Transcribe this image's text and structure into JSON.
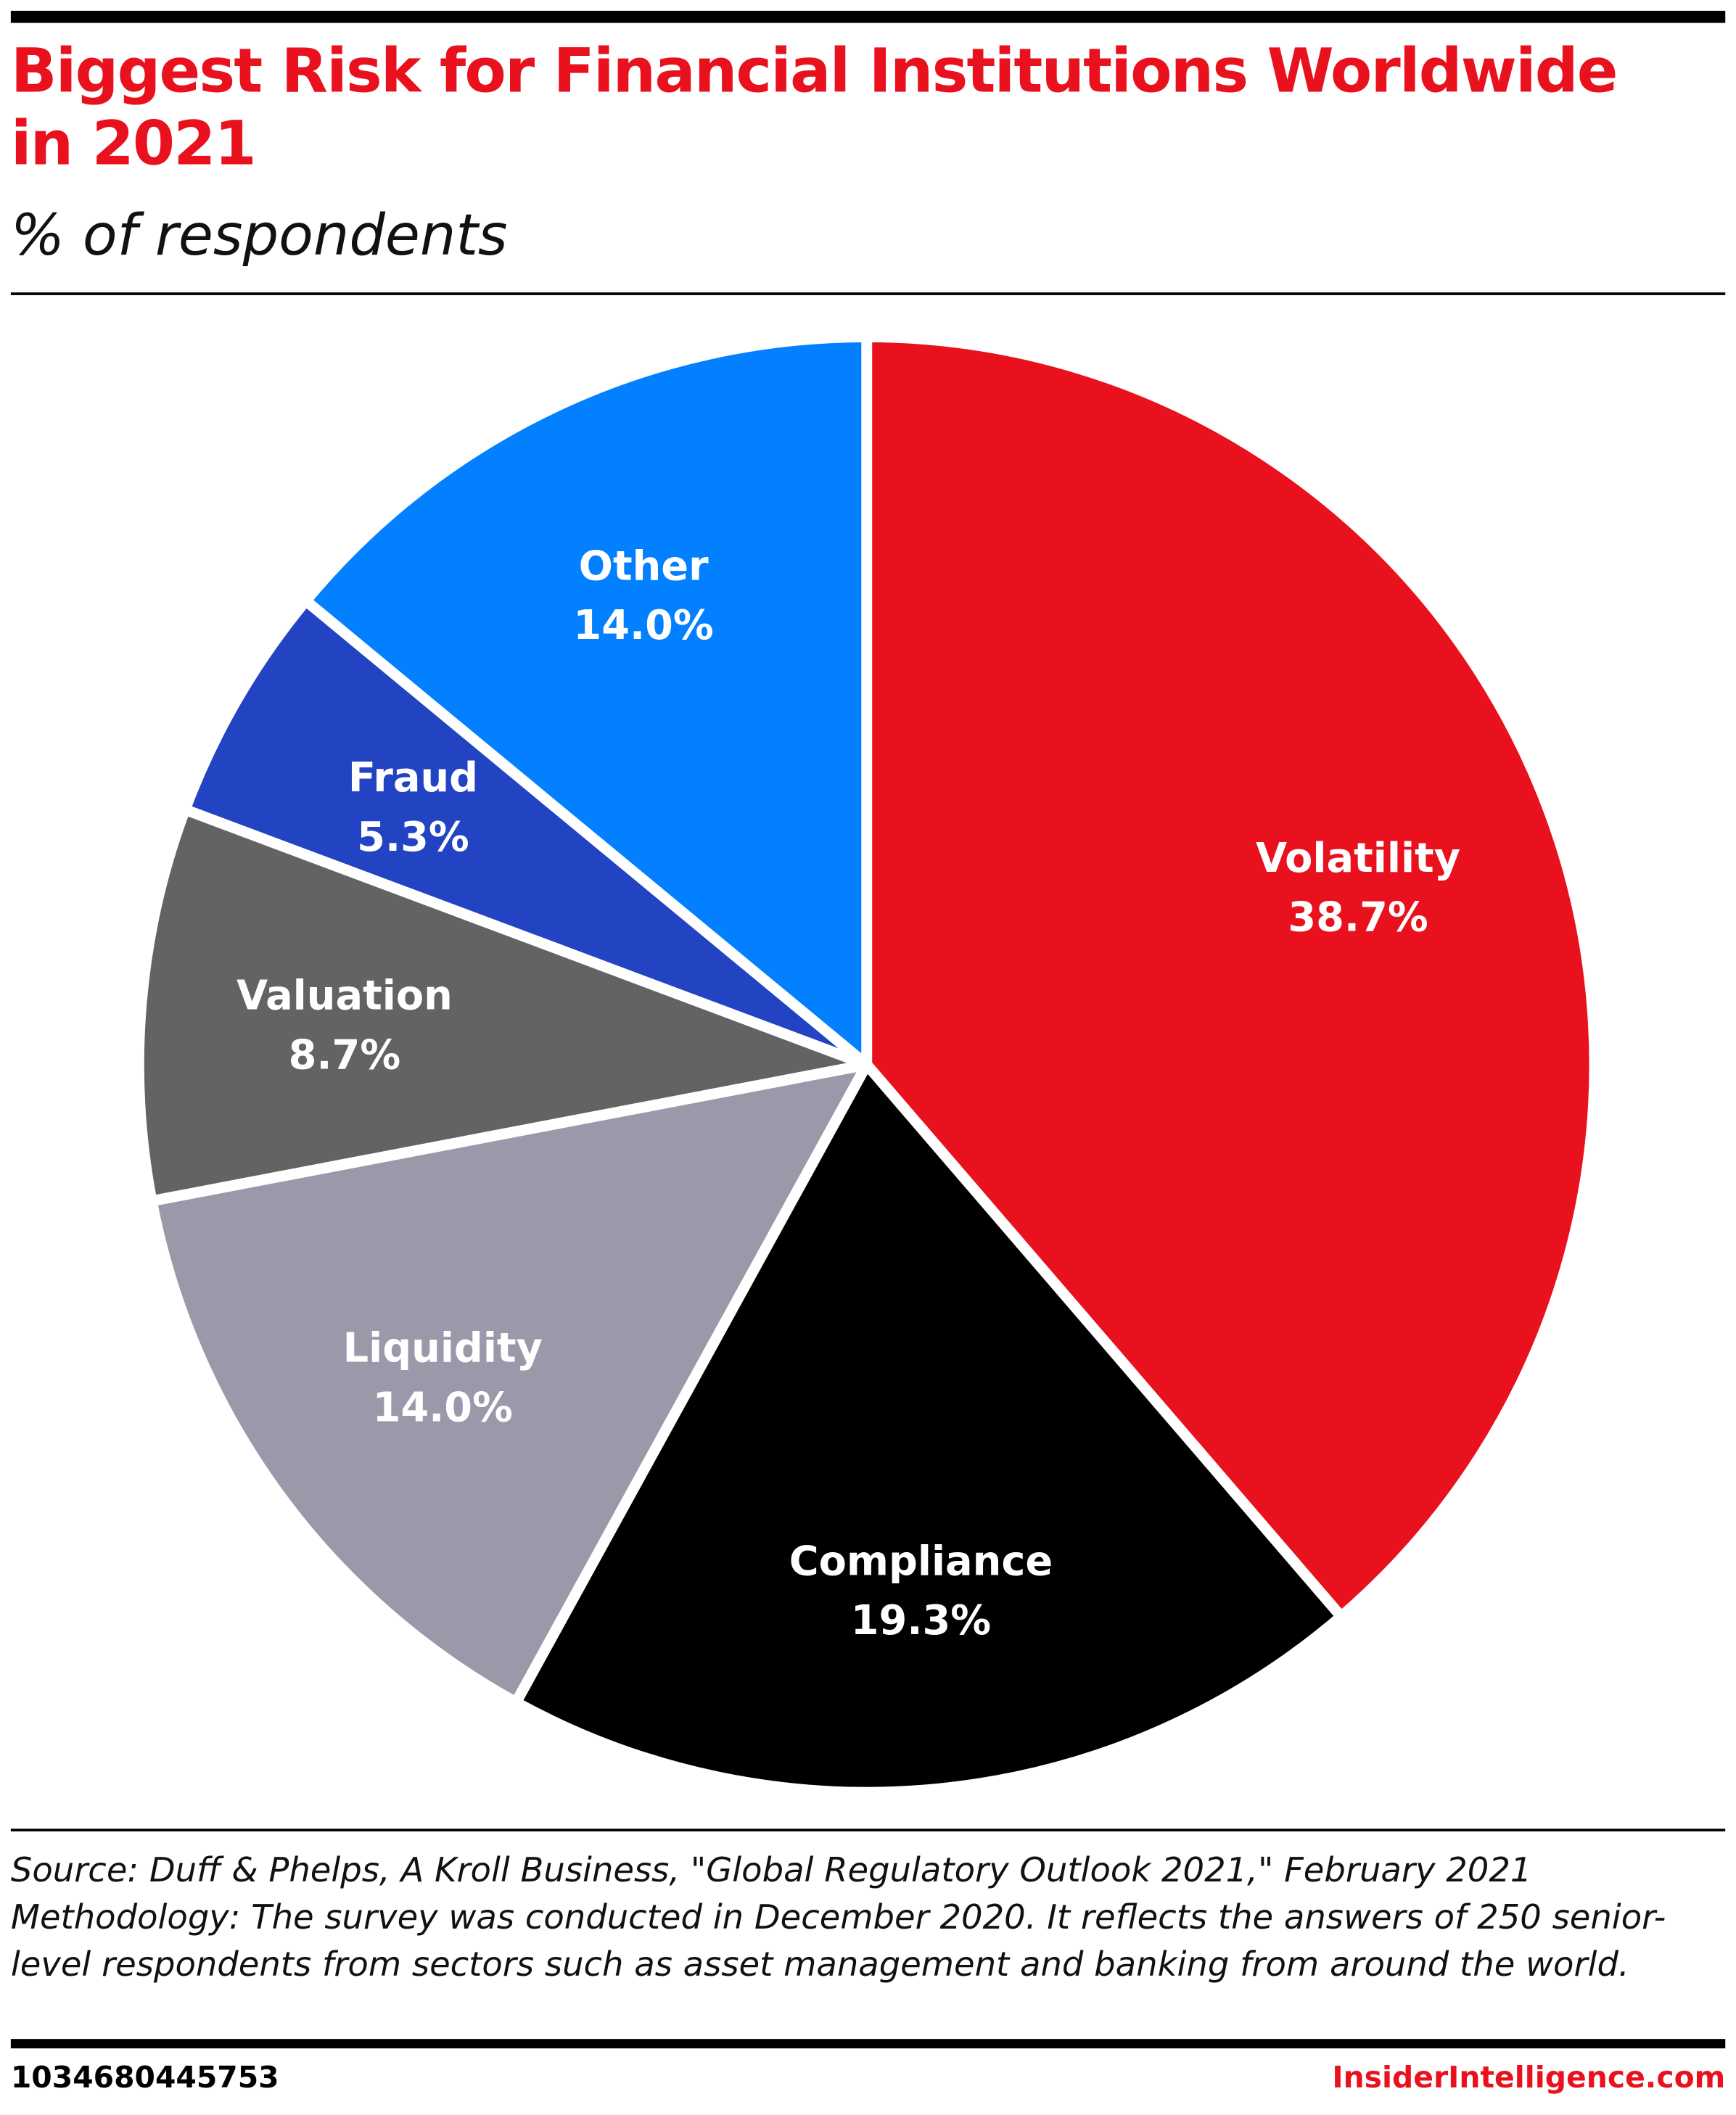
{
  "chart_data": {
    "type": "pie",
    "title": "Biggest Risk for Financial Institutions Worldwide in 2021",
    "subtitle": "% of respondents",
    "categories": [
      "Volatility",
      "Compliance",
      "Liquidity",
      "Valuation",
      "Fraud",
      "Other"
    ],
    "values": [
      38.7,
      19.3,
      14.0,
      8.7,
      5.3,
      14.0
    ],
    "value_labels": [
      "38.7%",
      "19.3%",
      "14.0%",
      "8.7%",
      "5.3%",
      "14.0%"
    ],
    "colors": [
      "#e8111d",
      "#000000",
      "#9a99aa",
      "#636363",
      "#2243c2",
      "#0380ff"
    ],
    "source": "Source: Duff & Phelps, A Kroll Business, \"Global Regulatory Outlook 2021,\" February 2021",
    "methodology": "Methodology: The survey was conducted in December 2020. It reflects the answers of 250 senior-level respondents from sectors such as asset management and banking from around the world.",
    "chart_id": "1034680445753",
    "brand": "InsiderIntelligence.com"
  }
}
